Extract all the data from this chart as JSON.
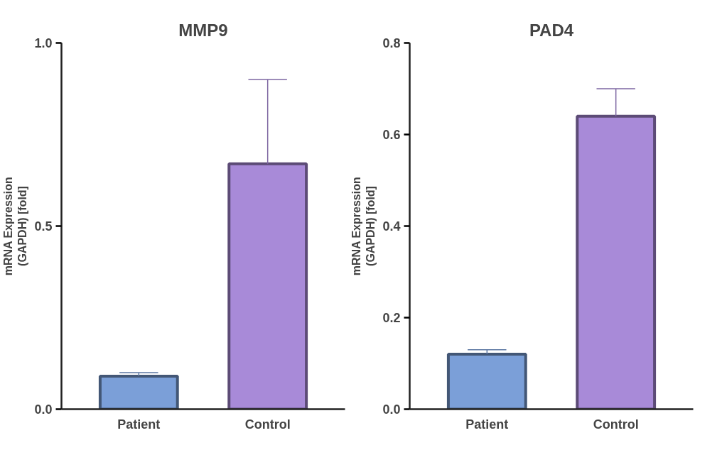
{
  "chart_data": [
    {
      "type": "bar",
      "title": "MMP9",
      "ylabel": "mRNA Expression\n(GAPDH) [fold]",
      "categories": [
        "Patient",
        "Control"
      ],
      "values": [
        0.09,
        0.67
      ],
      "colors": [
        "#7b9fd8",
        "#a88ad8"
      ],
      "errors": [
        [
          0.09,
          0.1
        ],
        [
          0.67,
          0.9
        ]
      ],
      "ylim": [
        0,
        1.0
      ],
      "yticks": [
        {
          "value": 0,
          "label": "0.0"
        },
        {
          "value": 0.5,
          "label": "0.5"
        },
        {
          "value": 1.0,
          "label": "1.0"
        }
      ],
      "grid": false
    },
    {
      "type": "bar",
      "title": "PAD4",
      "ylabel": "mRNA Expression\n(GAPDH) [fold]",
      "categories": [
        "Patient",
        "Control"
      ],
      "values": [
        0.12,
        0.64
      ],
      "colors": [
        "#7b9fd8",
        "#a88ad8"
      ],
      "errors": [
        [
          0.12,
          0.13
        ],
        [
          0.64,
          0.7
        ]
      ],
      "ylim": [
        0,
        0.8
      ],
      "yticks": [
        {
          "value": 0,
          "label": "0.0"
        },
        {
          "value": 0.2,
          "label": "0.2"
        },
        {
          "value": 0.4,
          "label": "0.4"
        },
        {
          "value": 0.6,
          "label": "0.6"
        },
        {
          "value": 0.8,
          "label": "0.8"
        }
      ],
      "grid": false
    }
  ]
}
